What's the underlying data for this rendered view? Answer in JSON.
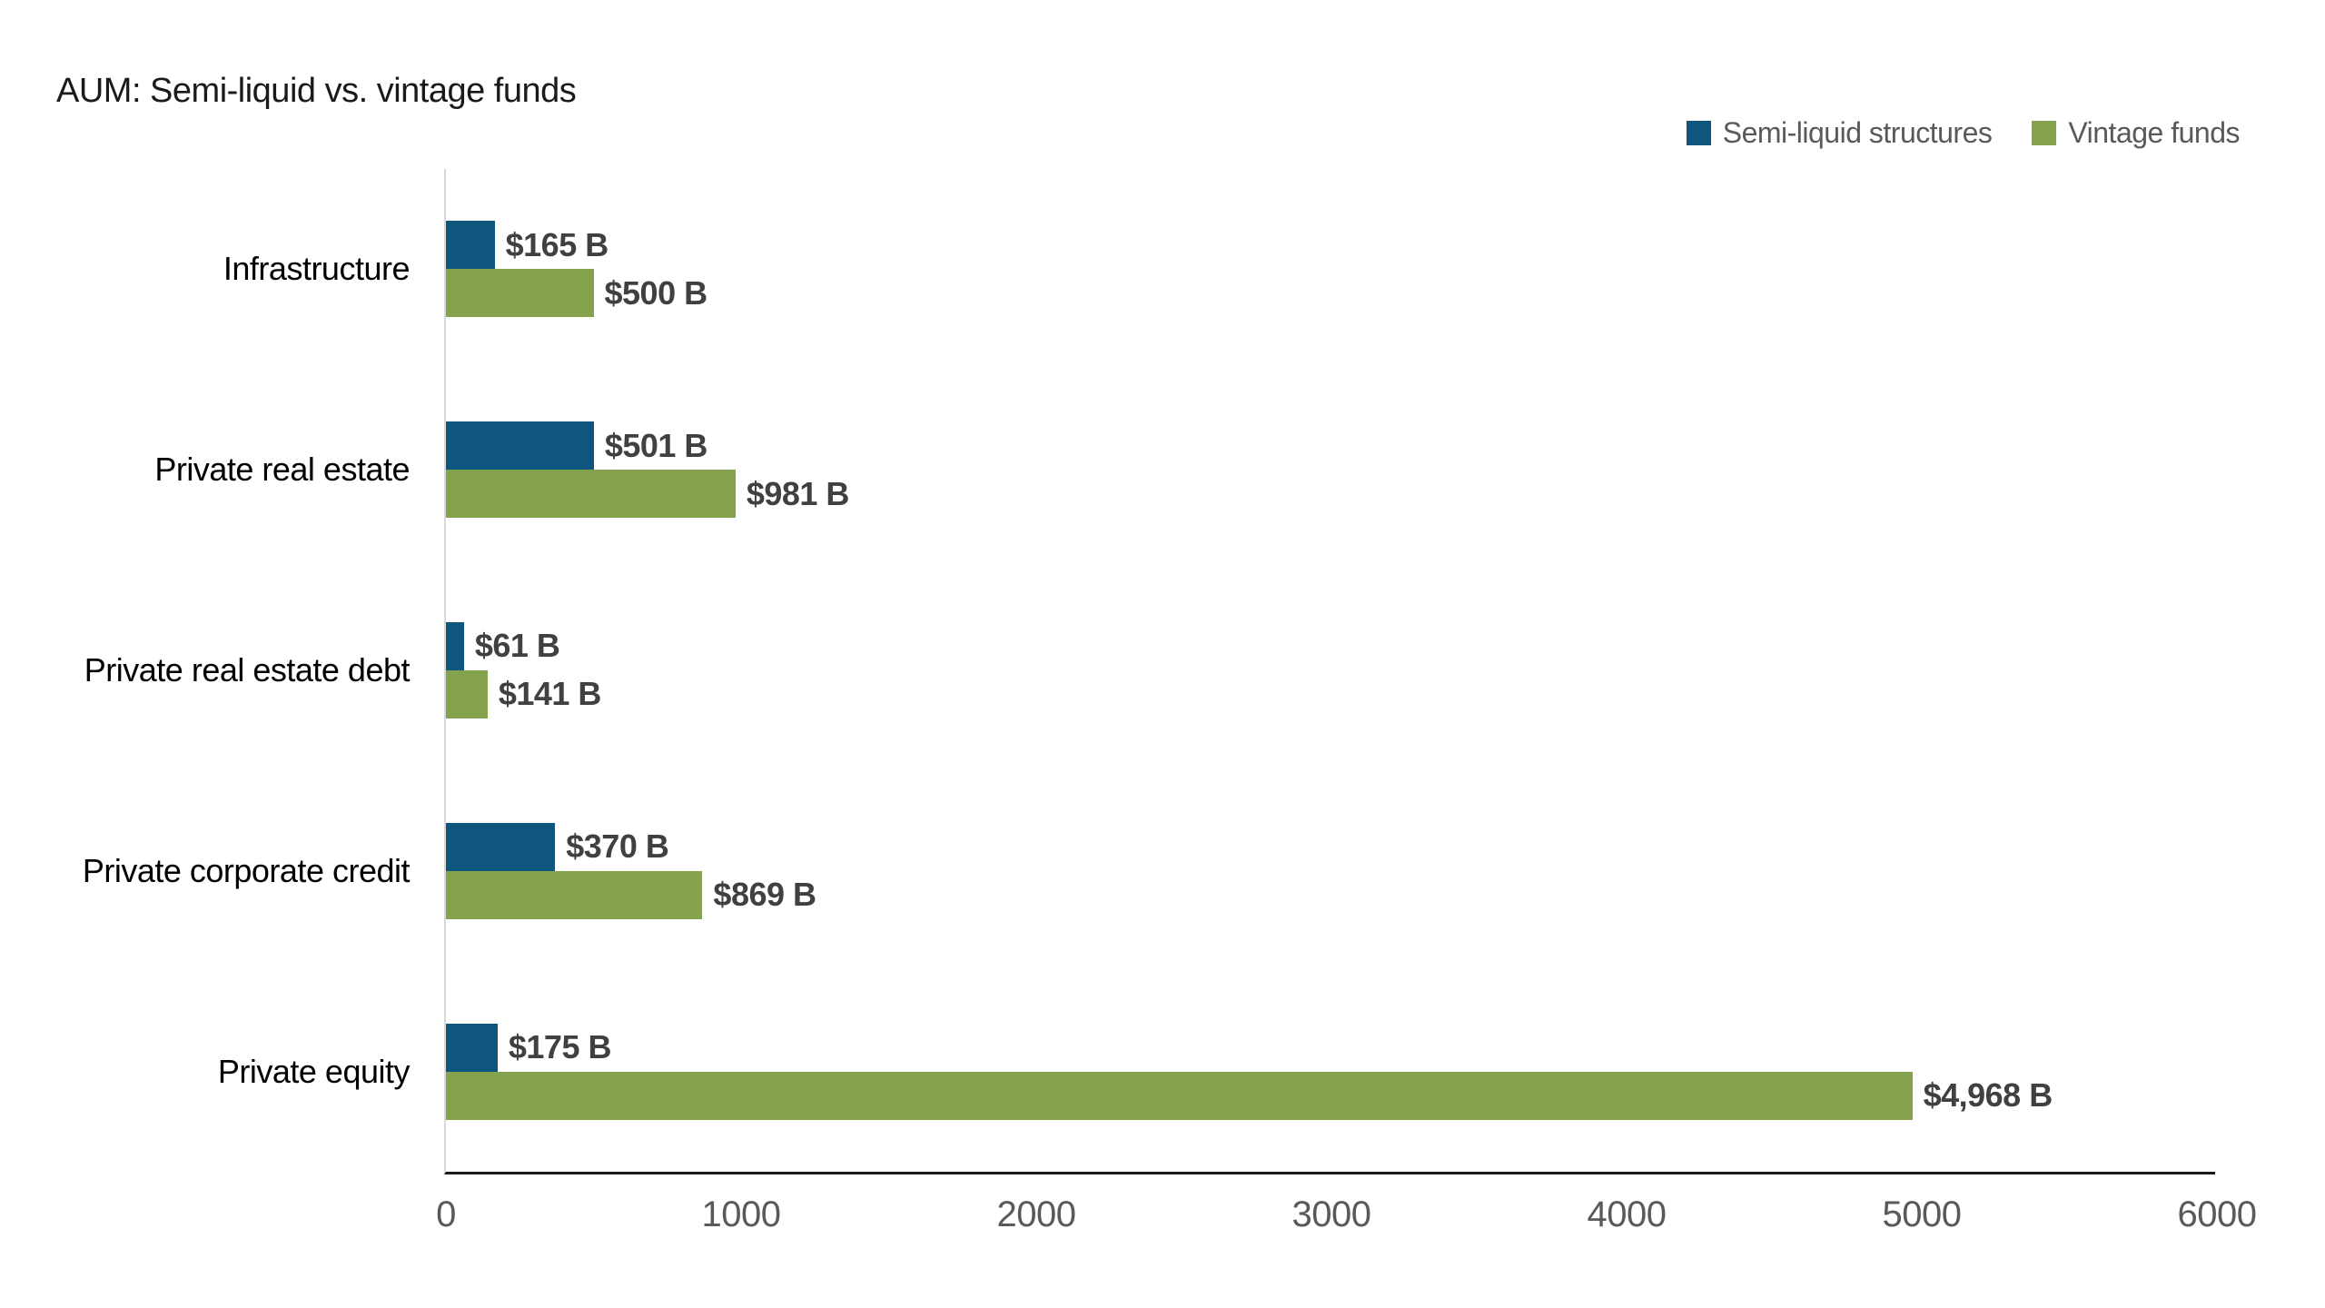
{
  "title": "AUM: Semi-liquid vs. vintage funds",
  "legend": {
    "items": [
      {
        "label": "Semi-liquid structures",
        "color": "#0E567E"
      },
      {
        "label": "Vintage funds",
        "color": "#85A24F"
      }
    ],
    "position": "top-right"
  },
  "colors": {
    "semi_liquid_bar": "#0E567E",
    "vintage_bar": "#85A24F",
    "value_label": "#404040",
    "tick_label": "#595959",
    "category_label": "#000000",
    "y_axis_line": "#D9D9D9",
    "x_axis_line": "#1A1A1A",
    "background": "#FFFFFF"
  },
  "chart_data": {
    "type": "bar",
    "orientation": "horizontal",
    "title": "AUM: Semi-liquid vs. vintage funds",
    "categories": [
      "Infrastructure",
      "Private real estate",
      "Private real estate debt",
      "Private corporate credit",
      "Private equity"
    ],
    "series": [
      {
        "name": "Semi-liquid structures",
        "color": "#0E567E",
        "values": [
          165,
          501,
          61,
          370,
          175
        ],
        "labels": [
          "$165 B",
          "$501 B",
          "$61 B",
          "$370 B",
          "$175 B"
        ]
      },
      {
        "name": "Vintage funds",
        "color": "#85A24F",
        "values": [
          500,
          981,
          141,
          869,
          4968
        ],
        "labels": [
          "$500 B",
          "$981 B",
          "$141 B",
          "$869 B",
          "$4,968 B"
        ]
      }
    ],
    "xlabel": "",
    "ylabel": "",
    "xlim": [
      0,
      6000
    ],
    "xticks": [
      0,
      1000,
      2000,
      3000,
      4000,
      5000,
      6000
    ],
    "value_unit": "billions USD",
    "grid": false,
    "legend_position": "top-right"
  }
}
